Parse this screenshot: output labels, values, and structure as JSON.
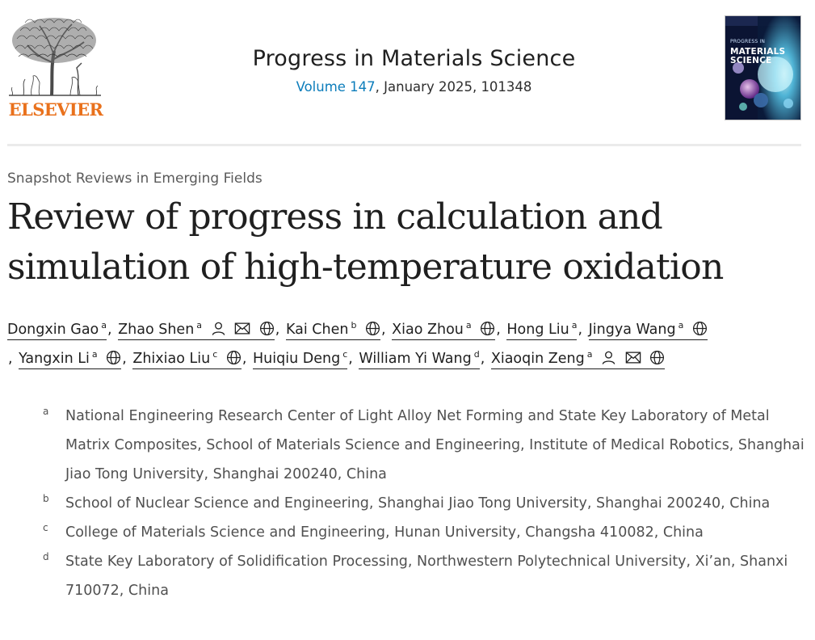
{
  "header": {
    "publisher_logo_text": "ELSEVIER",
    "journal_title": "Progress in Materials Science",
    "volume_link": "Volume 147",
    "issue_info": ", January 2025, 101348",
    "cover": {
      "title_line1": "PROGRESS IN",
      "title_line2": "MATERIALS",
      "title_line3": "SCIENCE"
    }
  },
  "article": {
    "type": "Snapshot Reviews in Emerging Fields",
    "title": "Review of progress in calculation and simulation of high-temperature oxidation"
  },
  "authors": [
    {
      "name": "Dongxin Gao",
      "sup": "a"
    },
    {
      "name": "Zhao Shen",
      "sup": "a"
    },
    {
      "name": "Kai Chen",
      "sup": "b"
    },
    {
      "name": "Xiao Zhou",
      "sup": "a"
    },
    {
      "name": "Hong Liu",
      "sup": "a"
    },
    {
      "name": "Jingya Wang",
      "sup": "a"
    },
    {
      "name": "Yangxin Li",
      "sup": "a"
    },
    {
      "name": "Zhixiao Liu",
      "sup": "c"
    },
    {
      "name": "Huiqiu Deng",
      "sup": "c"
    },
    {
      "name": "William Yi Wang",
      "sup": "d"
    },
    {
      "name": "Xiaoqin Zeng",
      "sup": "a"
    }
  ],
  "separator": ",",
  "affiliations": [
    {
      "mark": "a",
      "text": "National Engineering Research Center of Light Alloy Net Forming and State Key Laboratory of Metal Matrix Composites, School of Materials Science and Engineering, Institute of Medical Robotics, Shanghai Jiao Tong University, Shanghai 200240, China"
    },
    {
      "mark": "b",
      "text": "School of Nuclear Science and Engineering, Shanghai Jiao Tong University, Shanghai 200240, China"
    },
    {
      "mark": "c",
      "text": "College of Materials Science and Engineering, Hunan University, Changsha 410082, China"
    },
    {
      "mark": "d",
      "text": "State Key Laboratory of Solidification Processing, Northwestern Polytechnical University, Xi’an, Shanxi 710072, China"
    }
  ],
  "colors": {
    "link": "#0c7dbb",
    "elsevier_orange": "#e9711c",
    "text": "#1f1f1f"
  }
}
